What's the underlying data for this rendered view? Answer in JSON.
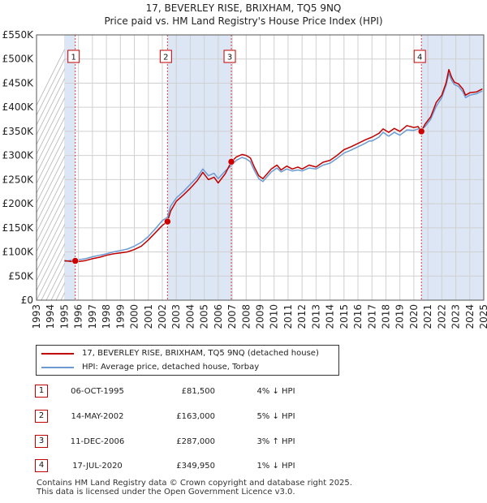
{
  "header": {
    "title_line1": "17, BEVERLEY RISE, BRIXHAM, TQ5 9NQ",
    "title_line2": "Price paid vs. HM Land Registry's House Price Index (HPI)"
  },
  "colors": {
    "price_line": "#c00000",
    "hpi_line": "#6b9bd2",
    "shade": "#dde6f5",
    "grid": "#d0d0d0",
    "marker": "#cc0000"
  },
  "chart_data": {
    "type": "line",
    "title": "17, BEVERLEY RISE, BRIXHAM, TQ5 9NQ — Price paid vs. HM Land Registry's House Price Index (HPI)",
    "xlim": [
      1993,
      2025
    ],
    "ylim": [
      0,
      550000
    ],
    "x_ticks": [
      1993,
      1994,
      1995,
      1996,
      1997,
      1998,
      1999,
      2000,
      2001,
      2002,
      2003,
      2004,
      2005,
      2006,
      2007,
      2008,
      2009,
      2010,
      2011,
      2012,
      2013,
      2014,
      2015,
      2016,
      2017,
      2018,
      2019,
      2020,
      2021,
      2022,
      2023,
      2024,
      2025
    ],
    "y_ticks": [
      {
        "value": 0,
        "label": "£0"
      },
      {
        "value": 50000,
        "label": "£50K"
      },
      {
        "value": 100000,
        "label": "£100K"
      },
      {
        "value": 150000,
        "label": "£150K"
      },
      {
        "value": 200000,
        "label": "£200K"
      },
      {
        "value": 250000,
        "label": "£250K"
      },
      {
        "value": 300000,
        "label": "£300K"
      },
      {
        "value": 350000,
        "label": "£350K"
      },
      {
        "value": 400000,
        "label": "£400K"
      },
      {
        "value": 450000,
        "label": "£450K"
      },
      {
        "value": 500000,
        "label": "£500K"
      },
      {
        "value": 550000,
        "label": "£550K"
      }
    ],
    "data_start": 1995.0,
    "shaded_ranges": [
      [
        1995.0,
        1995.77
      ],
      [
        2002.37,
        2006.94
      ],
      [
        2020.54,
        2025.0
      ]
    ],
    "series": [
      {
        "name": "17, BEVERLEY RISE, BRIXHAM, TQ5 9NQ (detached house)",
        "color": "#c00000",
        "points": [
          [
            1995.0,
            82000
          ],
          [
            1995.5,
            80000
          ],
          [
            1995.77,
            81500
          ],
          [
            1996.0,
            80000
          ],
          [
            1996.5,
            82000
          ],
          [
            1997.0,
            86000
          ],
          [
            1997.5,
            89000
          ],
          [
            1998.0,
            93000
          ],
          [
            1998.5,
            96000
          ],
          [
            1999.0,
            98000
          ],
          [
            1999.5,
            100000
          ],
          [
            2000.0,
            105000
          ],
          [
            2000.5,
            112000
          ],
          [
            2001.0,
            125000
          ],
          [
            2001.5,
            140000
          ],
          [
            2002.0,
            155000
          ],
          [
            2002.37,
            163000
          ],
          [
            2002.6,
            185000
          ],
          [
            2003.0,
            205000
          ],
          [
            2003.5,
            218000
          ],
          [
            2004.0,
            232000
          ],
          [
            2004.5,
            248000
          ],
          [
            2004.9,
            265000
          ],
          [
            2005.3,
            250000
          ],
          [
            2005.7,
            255000
          ],
          [
            2006.0,
            243000
          ],
          [
            2006.5,
            262000
          ],
          [
            2006.94,
            287000
          ],
          [
            2007.3,
            297000
          ],
          [
            2007.7,
            302000
          ],
          [
            2008.0,
            300000
          ],
          [
            2008.3,
            295000
          ],
          [
            2008.6,
            275000
          ],
          [
            2008.9,
            258000
          ],
          [
            2009.2,
            252000
          ],
          [
            2009.5,
            262000
          ],
          [
            2009.8,
            272000
          ],
          [
            2010.2,
            280000
          ],
          [
            2010.5,
            270000
          ],
          [
            2010.9,
            278000
          ],
          [
            2011.3,
            272000
          ],
          [
            2011.7,
            276000
          ],
          [
            2012.0,
            272000
          ],
          [
            2012.5,
            280000
          ],
          [
            2013.0,
            276000
          ],
          [
            2013.5,
            286000
          ],
          [
            2014.0,
            290000
          ],
          [
            2014.5,
            300000
          ],
          [
            2015.0,
            312000
          ],
          [
            2015.5,
            318000
          ],
          [
            2016.0,
            325000
          ],
          [
            2016.5,
            332000
          ],
          [
            2017.0,
            338000
          ],
          [
            2017.5,
            346000
          ],
          [
            2017.8,
            355000
          ],
          [
            2018.2,
            348000
          ],
          [
            2018.6,
            356000
          ],
          [
            2019.0,
            350000
          ],
          [
            2019.5,
            362000
          ],
          [
            2020.0,
            358000
          ],
          [
            2020.3,
            360000
          ],
          [
            2020.54,
            349950
          ],
          [
            2020.8,
            365000
          ],
          [
            2021.2,
            380000
          ],
          [
            2021.6,
            410000
          ],
          [
            2022.0,
            425000
          ],
          [
            2022.3,
            450000
          ],
          [
            2022.5,
            478000
          ],
          [
            2022.7,
            462000
          ],
          [
            2022.9,
            452000
          ],
          [
            2023.2,
            448000
          ],
          [
            2023.5,
            438000
          ],
          [
            2023.7,
            425000
          ],
          [
            2024.0,
            430000
          ],
          [
            2024.5,
            432000
          ],
          [
            2024.9,
            438000
          ]
        ]
      },
      {
        "name": "HPI: Average price, detached house, Torbay",
        "color": "#6b9bd2",
        "points": [
          [
            1995.0,
            80000
          ],
          [
            1995.5,
            83000
          ],
          [
            1996.0,
            84000
          ],
          [
            1996.5,
            86000
          ],
          [
            1997.0,
            90000
          ],
          [
            1997.5,
            93000
          ],
          [
            1998.0,
            96000
          ],
          [
            1998.5,
            100000
          ],
          [
            1999.0,
            103000
          ],
          [
            1999.5,
            106000
          ],
          [
            2000.0,
            112000
          ],
          [
            2000.5,
            120000
          ],
          [
            2001.0,
            132000
          ],
          [
            2001.5,
            148000
          ],
          [
            2002.0,
            165000
          ],
          [
            2002.37,
            172000
          ],
          [
            2002.6,
            195000
          ],
          [
            2003.0,
            212000
          ],
          [
            2003.5,
            225000
          ],
          [
            2004.0,
            240000
          ],
          [
            2004.5,
            255000
          ],
          [
            2004.9,
            272000
          ],
          [
            2005.3,
            258000
          ],
          [
            2005.7,
            263000
          ],
          [
            2006.0,
            252000
          ],
          [
            2006.5,
            268000
          ],
          [
            2006.94,
            279000
          ],
          [
            2007.3,
            290000
          ],
          [
            2007.7,
            296000
          ],
          [
            2008.0,
            293000
          ],
          [
            2008.3,
            287000
          ],
          [
            2008.6,
            268000
          ],
          [
            2008.9,
            252000
          ],
          [
            2009.2,
            246000
          ],
          [
            2009.5,
            256000
          ],
          [
            2009.8,
            266000
          ],
          [
            2010.2,
            274000
          ],
          [
            2010.5,
            266000
          ],
          [
            2010.9,
            272000
          ],
          [
            2011.3,
            268000
          ],
          [
            2011.7,
            270000
          ],
          [
            2012.0,
            268000
          ],
          [
            2012.5,
            274000
          ],
          [
            2013.0,
            272000
          ],
          [
            2013.5,
            280000
          ],
          [
            2014.0,
            284000
          ],
          [
            2014.5,
            294000
          ],
          [
            2015.0,
            305000
          ],
          [
            2015.5,
            311000
          ],
          [
            2016.0,
            318000
          ],
          [
            2016.5,
            325000
          ],
          [
            2016.8,
            330000
          ],
          [
            2017.0,
            330000
          ],
          [
            2017.5,
            338000
          ],
          [
            2017.8,
            348000
          ],
          [
            2018.2,
            340000
          ],
          [
            2018.6,
            348000
          ],
          [
            2019.0,
            342000
          ],
          [
            2019.5,
            353000
          ],
          [
            2020.0,
            352000
          ],
          [
            2020.3,
            355000
          ],
          [
            2020.54,
            354000
          ],
          [
            2020.8,
            360000
          ],
          [
            2021.2,
            375000
          ],
          [
            2021.6,
            402000
          ],
          [
            2022.0,
            420000
          ],
          [
            2022.3,
            445000
          ],
          [
            2022.5,
            470000
          ],
          [
            2022.7,
            456000
          ],
          [
            2022.9,
            447000
          ],
          [
            2023.2,
            443000
          ],
          [
            2023.5,
            432000
          ],
          [
            2023.7,
            420000
          ],
          [
            2024.0,
            425000
          ],
          [
            2024.5,
            428000
          ],
          [
            2024.9,
            434000
          ]
        ]
      }
    ],
    "sales": [
      {
        "num": "1",
        "x": 1995.77,
        "date": "06-OCT-1995",
        "price": 81500,
        "price_label": "£81,500",
        "hpi": "4% ↓ HPI"
      },
      {
        "num": "2",
        "x": 2002.37,
        "date": "14-MAY-2002",
        "price": 163000,
        "price_label": "£163,000",
        "hpi": "5% ↓ HPI"
      },
      {
        "num": "3",
        "x": 2006.94,
        "date": "11-DEC-2006",
        "price": 287000,
        "price_label": "£287,000",
        "hpi": "3% ↑ HPI"
      },
      {
        "num": "4",
        "x": 2020.54,
        "date": "17-JUL-2020",
        "price": 349950,
        "price_label": "£349,950",
        "hpi": "1% ↓ HPI"
      }
    ]
  },
  "legend": {
    "price_label": "17, BEVERLEY RISE, BRIXHAM, TQ5 9NQ (detached house)",
    "hpi_label": "HPI: Average price, detached house, Torbay"
  },
  "footer": {
    "line1": "Contains HM Land Registry data © Crown copyright and database right 2025.",
    "line2": "This data is licensed under the Open Government Licence v3.0."
  }
}
